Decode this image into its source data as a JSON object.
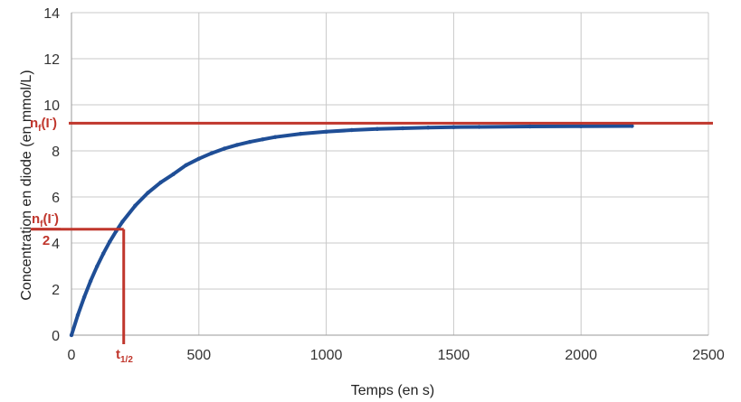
{
  "chart_data": {
    "type": "line",
    "xlabel": "Temps (en s)",
    "ylabel": "Concentration en diode (en mmol/L)",
    "xlim": [
      0,
      2500
    ],
    "ylim": [
      0,
      14
    ],
    "x_ticks": [
      "0",
      "500",
      "1000",
      "1500",
      "2000",
      "2500"
    ],
    "y_ticks": [
      "0",
      "2",
      "4",
      "6",
      "8",
      "10",
      "12",
      "14"
    ],
    "grid": true,
    "series": [
      {
        "color": "#1f4e96",
        "x": [
          0,
          25,
          50,
          75,
          100,
          125,
          150,
          175,
          200,
          250,
          300,
          350,
          400,
          450,
          500,
          550,
          600,
          650,
          700,
          750,
          800,
          900,
          1000,
          1100,
          1200,
          1300,
          1400,
          1500,
          1600,
          1800,
          2000,
          2200
        ],
        "y": [
          0.0,
          0.87,
          1.65,
          2.35,
          2.98,
          3.54,
          4.05,
          4.51,
          4.92,
          5.62,
          6.18,
          6.63,
          6.99,
          7.38,
          7.66,
          7.9,
          8.1,
          8.26,
          8.39,
          8.5,
          8.6,
          8.74,
          8.83,
          8.9,
          8.95,
          8.98,
          9.01,
          9.03,
          9.04,
          9.06,
          9.07,
          9.08
        ]
      }
    ],
    "annotations": {
      "color": "#c0362c",
      "nf_value": 9.2,
      "half_value": 4.6,
      "t_half_x": 205,
      "nf_label": "n",
      "nf_sub": "f",
      "nf_paren_open": "(I",
      "nf_sup": "-",
      "nf_paren_close": ")",
      "half_denominator": "2",
      "t_label": "t",
      "t_sub": "1/2"
    }
  }
}
